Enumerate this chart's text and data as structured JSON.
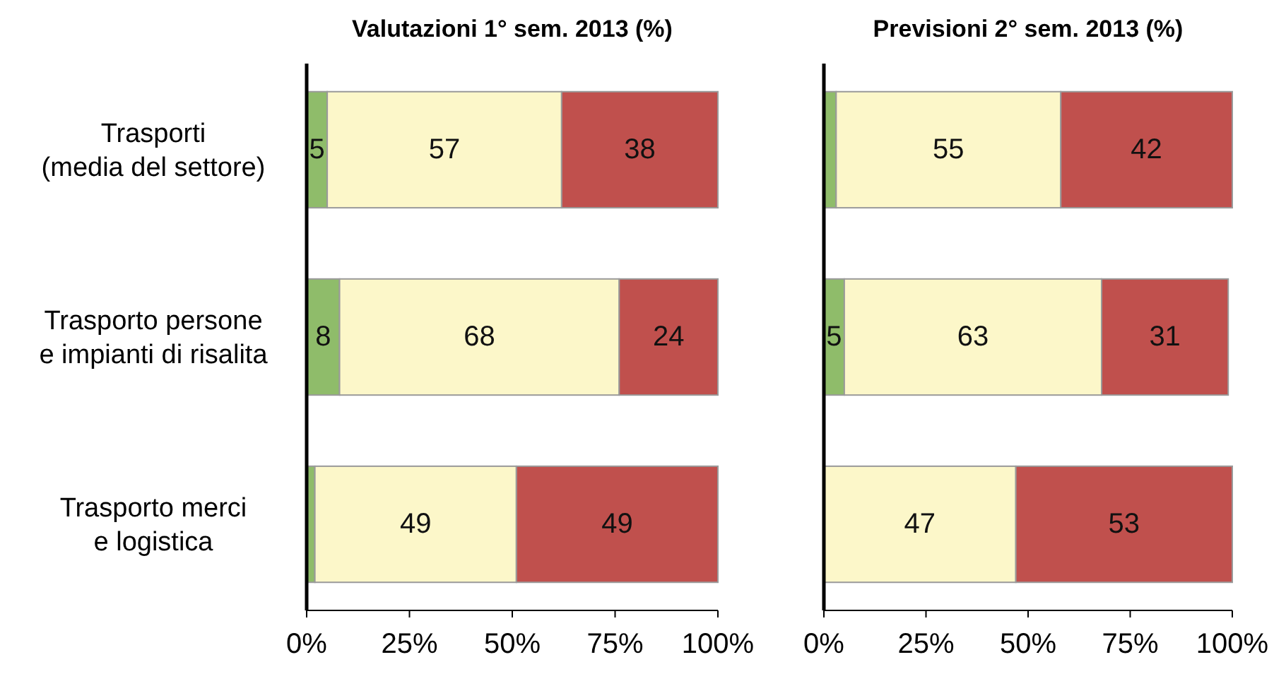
{
  "chart_data": [
    {
      "type": "bar",
      "orientation": "horizontal",
      "stacked": true,
      "title": "Valutazioni 1° sem. 2013 (%)",
      "categories": [
        "Trasporti\n(media del settore)",
        "Trasporto persone\ne impianti di risalita",
        "Trasporto merci\ne logistica"
      ],
      "xlim": [
        0,
        100
      ],
      "xticks": [
        {
          "value": 0,
          "label": "0%"
        },
        {
          "value": 25,
          "label": "25%"
        },
        {
          "value": 50,
          "label": "50%"
        },
        {
          "value": 75,
          "label": "75%"
        },
        {
          "value": 100,
          "label": "100%"
        }
      ],
      "series": [
        {
          "color": "#8fbc6a",
          "values": [
            5,
            8,
            2
          ],
          "value_labels": [
            "5",
            "8",
            null
          ]
        },
        {
          "color": "#fcf7c9",
          "values": [
            57,
            68,
            49
          ],
          "value_labels": [
            "57",
            "68",
            "49"
          ]
        },
        {
          "color": "#c0504d",
          "values": [
            38,
            24,
            49
          ],
          "value_labels": [
            "38",
            "24",
            "49"
          ]
        }
      ]
    },
    {
      "type": "bar",
      "orientation": "horizontal",
      "stacked": true,
      "title": "Previsioni 2° sem. 2013 (%)",
      "categories": [
        null,
        null,
        null
      ],
      "tick_labels": "x",
      "xlim": [
        0,
        100
      ],
      "xticks": [
        {
          "value": 0,
          "label": "0%"
        },
        {
          "value": 25,
          "label": "25%"
        },
        {
          "value": 50,
          "label": "50%"
        },
        {
          "value": 75,
          "label": "75%"
        },
        {
          "value": 100,
          "label": "100%"
        }
      ],
      "series": [
        {
          "color": "#8fbc6a",
          "values": [
            3,
            5,
            0
          ],
          "value_labels": [
            null,
            "5",
            null
          ]
        },
        {
          "color": "#fcf7c9",
          "values": [
            55,
            63,
            47
          ],
          "value_labels": [
            "55",
            "63",
            "47"
          ]
        },
        {
          "color": "#c0504d",
          "values": [
            42,
            31,
            53
          ],
          "value_labels": [
            "42",
            "31",
            "53"
          ]
        }
      ]
    }
  ]
}
